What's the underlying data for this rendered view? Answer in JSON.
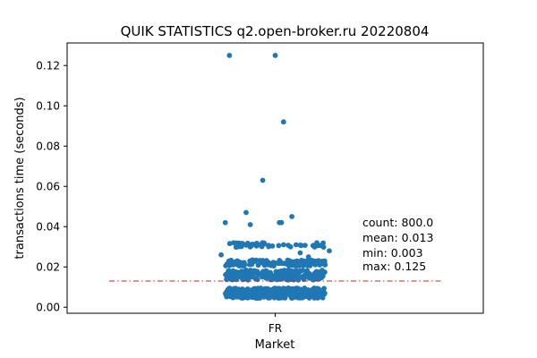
{
  "chart_data": {
    "type": "scatter",
    "title": "QUIK STATISTICS  q2.open-broker.ru  20220804",
    "xlabel": "Market",
    "ylabel": "transactions time (seconds)",
    "categories": [
      "FR"
    ],
    "ylim": [
      -0.003,
      0.1312
    ],
    "yticks": [
      "0.00",
      "0.02",
      "0.04",
      "0.06",
      "0.08",
      "0.10",
      "0.12"
    ],
    "grid": false,
    "legend": "none",
    "point_color": "#1f77b4",
    "mean_line_color": "#c42a2a",
    "mean_line_value": 0.013,
    "stats": {
      "count": "count: 800.0",
      "mean": "mean: 0.013",
      "min": "min: 0.003",
      "max": "max: 0.125"
    },
    "series": [
      {
        "category": "FR",
        "jitter_width": 0.12,
        "outlier_points": [
          [
            -0.11,
            0.125
          ],
          [
            0.0,
            0.125
          ],
          [
            0.02,
            0.092
          ],
          [
            -0.03,
            0.063
          ],
          [
            -0.12,
            0.042
          ],
          [
            -0.06,
            0.041
          ],
          [
            -0.07,
            0.047
          ],
          [
            0.01,
            0.042
          ],
          [
            0.015,
            0.042
          ],
          [
            0.04,
            0.045
          ],
          [
            -0.1,
            0.032
          ],
          [
            -0.08,
            0.031
          ],
          [
            -0.04,
            0.031
          ],
          [
            0.02,
            0.031
          ],
          [
            0.05,
            0.031
          ],
          [
            0.1,
            0.032
          ],
          [
            0.13,
            0.028
          ],
          [
            0.08,
            0.025
          ],
          [
            -0.13,
            0.026
          ],
          [
            0.06,
            0.027
          ]
        ],
        "clusters": [
          {
            "y": 0.007,
            "spread": 0.0025,
            "n": 380
          },
          {
            "y": 0.016,
            "spread": 0.0025,
            "n": 230
          },
          {
            "y": 0.022,
            "spread": 0.0015,
            "n": 130
          },
          {
            "y": 0.031,
            "spread": 0.0012,
            "n": 40
          }
        ]
      }
    ]
  }
}
